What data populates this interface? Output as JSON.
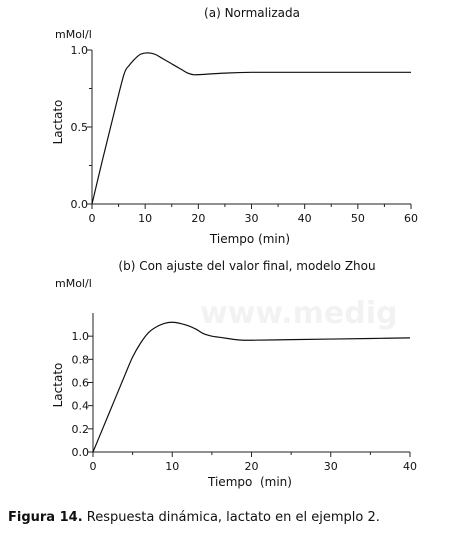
{
  "chart_data": [
    {
      "type": "line",
      "title": "(a) Normalizada",
      "xlabel": "Tiempo (min)",
      "ylabel": "Lactato",
      "yunit": "mMol/l",
      "xlim": [
        0,
        60
      ],
      "ylim": [
        0,
        1.0
      ],
      "xticks": [
        0,
        10,
        20,
        30,
        40,
        50,
        60
      ],
      "xtick_labels": [
        "0",
        "10",
        "20",
        "30",
        "40",
        "50",
        "60"
      ],
      "yticks": [
        0.0,
        0.5,
        1.0
      ],
      "ytick_labels": [
        "0.0",
        "0.5",
        "1.0"
      ],
      "grid": false,
      "series": [
        {
          "x": [
            0,
            2,
            4,
            6,
            7,
            8,
            9,
            10,
            11,
            12,
            13,
            14,
            15,
            16,
            17,
            18,
            19,
            20,
            25,
            30,
            40,
            50,
            60
          ],
          "y": [
            0.0,
            0.29,
            0.57,
            0.84,
            0.9,
            0.94,
            0.97,
            0.98,
            0.98,
            0.97,
            0.95,
            0.93,
            0.91,
            0.89,
            0.87,
            0.85,
            0.84,
            0.84,
            0.85,
            0.855,
            0.855,
            0.855,
            0.855
          ]
        }
      ]
    },
    {
      "type": "line",
      "title": "(b) Con ajuste del valor final, modelo Zhou",
      "xlabel": "Tiempo  (min)",
      "ylabel": "Lactato",
      "yunit": "mMol/l",
      "xlim": [
        0,
        40
      ],
      "ylim": [
        0,
        1.2
      ],
      "xticks": [
        0,
        10,
        20,
        30,
        40
      ],
      "xtick_labels": [
        "0",
        "10",
        "20",
        "30",
        "40"
      ],
      "yticks": [
        0.0,
        0.2,
        0.4,
        0.6,
        0.8,
        1.0
      ],
      "ytick_labels": [
        "0.0",
        "0.2",
        "0.4",
        "0.6",
        "0.8",
        "1.0"
      ],
      "grid": false,
      "series": [
        {
          "x": [
            0,
            2,
            4,
            5,
            6,
            7,
            8,
            9,
            10,
            11,
            12,
            13,
            14,
            15,
            16,
            17,
            18,
            19,
            20,
            25,
            30,
            35,
            40
          ],
          "y": [
            0.0,
            0.33,
            0.66,
            0.82,
            0.94,
            1.03,
            1.08,
            1.11,
            1.12,
            1.11,
            1.09,
            1.06,
            1.02,
            1.0,
            0.99,
            0.98,
            0.97,
            0.965,
            0.965,
            0.97,
            0.975,
            0.98,
            0.985
          ]
        }
      ]
    }
  ],
  "watermark": "www.medig",
  "caption": {
    "label": "Figura 14.",
    "text": " Respuesta dinámica, lactato en el ejemplo 2."
  }
}
